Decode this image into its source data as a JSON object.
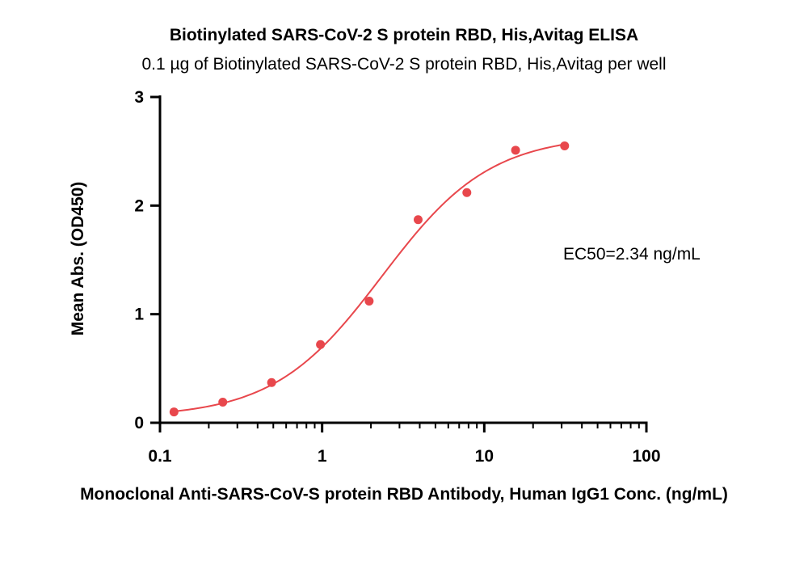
{
  "chart_data": {
    "type": "scatter",
    "title": "Biotinylated SARS-CoV-2 S protein RBD, His,Avitag ELISA",
    "subtitle": "0.1 µg of Biotinylated SARS-CoV-2 S protein RBD, His,Avitag per well",
    "xlabel": "Monoclonal Anti-SARS-CoV-S protein RBD Antibody, Human IgG1 Conc. (ng/mL)",
    "ylabel": "Mean Abs. (OD450)",
    "x_scale": "log",
    "xlim": [
      0.1,
      100
    ],
    "ylim": [
      0,
      3
    ],
    "x_ticks": [
      "0.1",
      "1",
      "10",
      "100"
    ],
    "x_tick_values": [
      0.1,
      1,
      10,
      100
    ],
    "y_ticks": [
      "0",
      "1",
      "2",
      "3"
    ],
    "y_tick_values": [
      0,
      1,
      2,
      3
    ],
    "grid": false,
    "points": [
      {
        "x": 0.122,
        "y": 0.1
      },
      {
        "x": 0.244,
        "y": 0.19
      },
      {
        "x": 0.488,
        "y": 0.37
      },
      {
        "x": 0.977,
        "y": 0.72
      },
      {
        "x": 1.95,
        "y": 1.12
      },
      {
        "x": 3.91,
        "y": 1.87
      },
      {
        "x": 7.81,
        "y": 2.12
      },
      {
        "x": 15.6,
        "y": 2.51
      },
      {
        "x": 31.3,
        "y": 2.55
      }
    ],
    "fit": {
      "type": "4PL",
      "bottom": 0.05,
      "top": 2.65,
      "ec50": 2.34,
      "hill": 1.3,
      "x_range": [
        0.122,
        31.3
      ]
    },
    "annotation": "EC50=2.34 ng/mL",
    "color": "#e8474c"
  }
}
